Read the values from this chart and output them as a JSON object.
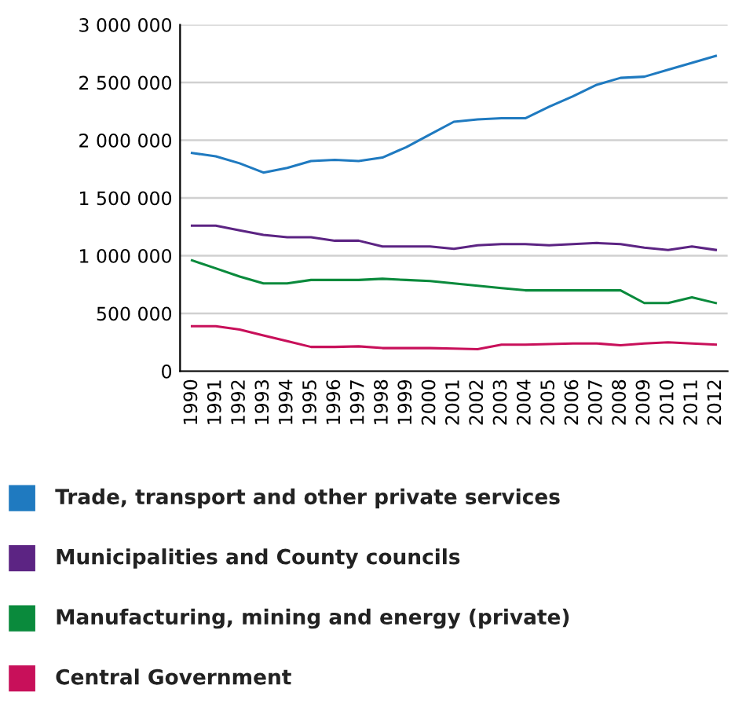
{
  "chart_data": {
    "type": "line",
    "categories": [
      "1990",
      "1991",
      "1992",
      "1993",
      "1994",
      "1995",
      "1996",
      "1997",
      "1998",
      "1999",
      "2000",
      "2001",
      "2002",
      "2003",
      "2004",
      "2005",
      "2006",
      "2007",
      "2008",
      "2009",
      "2010",
      "2011",
      "2012"
    ],
    "series": [
      {
        "name": "Trade, transport and other private services",
        "color": "#1f7ac0",
        "values": [
          1890000,
          1860000,
          1800000,
          1720000,
          1760000,
          1820000,
          1830000,
          1820000,
          1850000,
          1940000,
          2050000,
          2160000,
          2180000,
          2190000,
          2190000,
          2290000,
          2380000,
          2480000,
          2540000,
          2550000,
          2610000,
          2670000,
          2730000
        ]
      },
      {
        "name": "Municipalities and County councils",
        "color": "#5c2483",
        "values": [
          1260000,
          1260000,
          1220000,
          1180000,
          1160000,
          1160000,
          1130000,
          1130000,
          1080000,
          1080000,
          1080000,
          1060000,
          1090000,
          1100000,
          1100000,
          1090000,
          1100000,
          1110000,
          1100000,
          1070000,
          1050000,
          1080000,
          1050000
        ]
      },
      {
        "name": "Manufacturing, mining and energy (private)",
        "color": "#0a8a3c",
        "values": [
          960000,
          890000,
          820000,
          760000,
          760000,
          790000,
          790000,
          790000,
          800000,
          790000,
          780000,
          760000,
          740000,
          720000,
          700000,
          700000,
          700000,
          700000,
          700000,
          590000,
          590000,
          640000,
          590000
        ]
      },
      {
        "name": "Central Government",
        "color": "#c8105a",
        "values": [
          390000,
          390000,
          360000,
          310000,
          260000,
          210000,
          210000,
          215000,
          200000,
          200000,
          200000,
          195000,
          190000,
          230000,
          230000,
          235000,
          240000,
          240000,
          225000,
          240000,
          250000,
          240000,
          230000
        ]
      }
    ],
    "ylim": [
      0,
      3000000
    ],
    "yticks": [
      0,
      {
        "value": 500000,
        "label": "500 000"
      },
      {
        "value": 1000000,
        "label": "1 000 000"
      },
      {
        "value": 1500000,
        "label": "1 500 000"
      },
      {
        "value": 2000000,
        "label": "2 000 000"
      },
      {
        "value": 2500000,
        "label": "2 500 000"
      },
      {
        "value": 3000000,
        "label": "3 000 000"
      }
    ],
    "grid": "y",
    "legend": "bottom",
    "marker": "none",
    "line_style": "solid"
  }
}
